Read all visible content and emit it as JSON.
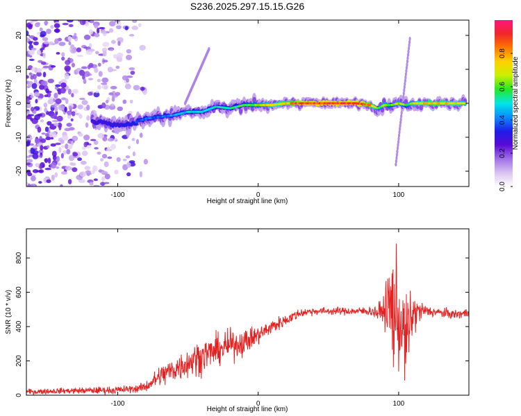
{
  "figure": {
    "title": "S236.2025.297.15.15.G26"
  },
  "chart_data": [
    {
      "type": "heatmap",
      "xlabel": "Height of straight line (km)",
      "ylabel": "Frequency (Hz)",
      "xlim": [
        -165,
        150
      ],
      "ylim": [
        -24.5,
        24.5
      ],
      "xticks": [
        -100,
        0,
        100
      ],
      "yticks": [
        -20,
        -10,
        0,
        10,
        20
      ],
      "grid": false,
      "colorbar": {
        "label": "Normalized spectral amplitude",
        "range": [
          0,
          1
        ],
        "ticks": [
          "0.0",
          "0.2",
          "0.4",
          "0.6",
          "0.8"
        ],
        "tick_values": [
          0.0,
          0.2,
          0.4,
          0.6,
          0.8
        ],
        "colormap": [
          "#ffffff",
          "#d9c2f2",
          "#a070e6",
          "#5a0ad6",
          "#1e1ee8",
          "#0a8cff",
          "#00e6e6",
          "#28e628",
          "#c8f000",
          "#ffd200",
          "#ff7800",
          "#f02828",
          "#ff1480"
        ]
      },
      "ridge": {
        "x": [
          -118,
          -110,
          -100,
          -90,
          -80,
          -70,
          -60,
          -50,
          -40,
          -30,
          -20,
          -10,
          0,
          10,
          20,
          30,
          40,
          50,
          60,
          70,
          80,
          85,
          90,
          95,
          100,
          105,
          110,
          120,
          130,
          140,
          148
        ],
        "y": [
          -5.5,
          -5.5,
          -6.5,
          -6.0,
          -4.5,
          -4.0,
          -3.5,
          -2.5,
          -2.5,
          -1.0,
          -1.5,
          -0.5,
          -0.5,
          -0.5,
          0.0,
          0.0,
          0.0,
          0.0,
          0.0,
          0.0,
          -0.5,
          -1.5,
          -0.5,
          -0.5,
          0.0,
          -0.5,
          0.0,
          0.0,
          0.0,
          0.0,
          0.0
        ],
        "amplitude": [
          0.25,
          0.3,
          0.3,
          0.35,
          0.4,
          0.4,
          0.45,
          0.5,
          0.5,
          0.55,
          0.55,
          0.6,
          0.65,
          0.75,
          0.8,
          0.9,
          0.95,
          0.95,
          0.95,
          0.95,
          0.85,
          0.6,
          0.7,
          0.6,
          0.7,
          0.6,
          0.7,
          0.8,
          0.8,
          0.75,
          0.7
        ]
      },
      "streaks": [
        {
          "x": [
            -52,
            -35
          ],
          "y": [
            0,
            16
          ],
          "amplitude": 0.15
        },
        {
          "x": [
            98,
            108
          ],
          "y": [
            -18,
            19
          ],
          "amplitude": 0.15
        }
      ],
      "noise_region": {
        "x": [
          -165,
          -80
        ],
        "y": [
          -24.5,
          24.5
        ],
        "amplitude": [
          0.05,
          0.3
        ]
      }
    },
    {
      "type": "line",
      "xlabel": "Height of straight line (km)",
      "ylabel": "SNR (10 * v/v)",
      "xlim": [
        -165,
        150
      ],
      "ylim": [
        0,
        970
      ],
      "xticks": [
        -100,
        0,
        100
      ],
      "yticks": [
        0,
        200,
        400,
        600,
        800
      ],
      "grid": false,
      "color": "#e62020",
      "envelope": {
        "x": [
          -165,
          -140,
          -100,
          -85,
          -80,
          -75,
          -70,
          -60,
          -50,
          -40,
          -30,
          -20,
          -10,
          0,
          10,
          20,
          30,
          40,
          50,
          60,
          70,
          80,
          85,
          90,
          93,
          96,
          98,
          100,
          103,
          105,
          107,
          110,
          115,
          120,
          130,
          140,
          150
        ],
        "y": [
          20,
          25,
          30,
          40,
          50,
          80,
          110,
          150,
          190,
          230,
          260,
          290,
          310,
          350,
          400,
          440,
          480,
          490,
          490,
          490,
          490,
          490,
          480,
          500,
          520,
          500,
          480,
          440,
          380,
          300,
          380,
          470,
          490,
          490,
          480,
          470,
          480
        ],
        "amplitude": [
          15,
          15,
          20,
          20,
          30,
          40,
          60,
          70,
          80,
          90,
          80,
          80,
          70,
          50,
          40,
          30,
          25,
          20,
          20,
          20,
          20,
          25,
          40,
          80,
          250,
          350,
          300,
          250,
          220,
          200,
          250,
          120,
          60,
          30,
          25,
          25,
          25
        ]
      }
    }
  ]
}
